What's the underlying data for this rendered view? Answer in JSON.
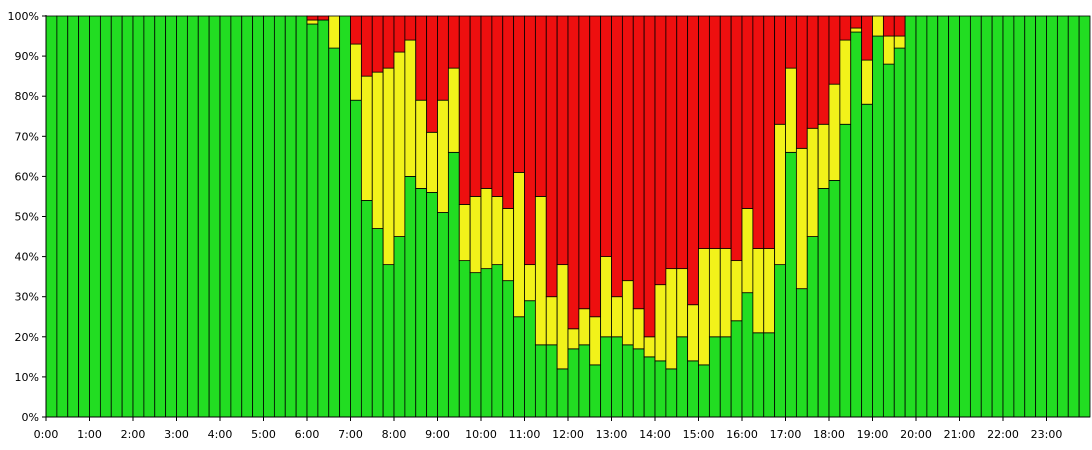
{
  "chart_data": {
    "type": "bar",
    "stacked": true,
    "title": "",
    "xlabel": "",
    "ylabel": "",
    "ylim": [
      0,
      100
    ],
    "grid": false,
    "legend": "none",
    "x_tick_labels": [
      "0:00",
      "1:00",
      "2:00",
      "3:00",
      "4:00",
      "5:00",
      "6:00",
      "7:00",
      "8:00",
      "9:00",
      "10:00",
      "11:00",
      "12:00",
      "13:00",
      "14:00",
      "15:00",
      "16:00",
      "17:00",
      "18:00",
      "19:00",
      "20:00",
      "21:00",
      "22:00",
      "23:00"
    ],
    "y_tick_labels": [
      "0%",
      "10%",
      "20%",
      "30%",
      "40%",
      "50%",
      "60%",
      "70%",
      "80%",
      "90%",
      "100%"
    ],
    "bars_per_hour": 4,
    "colors": {
      "green": "#22dd22",
      "yellow": "#f2f21a",
      "red": "#ee0f0f",
      "edge": "#000000"
    },
    "series": [
      {
        "color": "green",
        "values": [
          100,
          100,
          100,
          100,
          100,
          100,
          100,
          100,
          100,
          100,
          100,
          100,
          100,
          100,
          100,
          100,
          100,
          100,
          100,
          100,
          100,
          100,
          100,
          100,
          98,
          99,
          92,
          100,
          79,
          54,
          47,
          38,
          45,
          60,
          57,
          56,
          51,
          66,
          39,
          36,
          37,
          38,
          34,
          25,
          29,
          18,
          18,
          12,
          17,
          18,
          13,
          20,
          20,
          18,
          17,
          15,
          14,
          12,
          20,
          14,
          13,
          20,
          20,
          24,
          31,
          21,
          21,
          38,
          66,
          32,
          45,
          57,
          59,
          73,
          96,
          78,
          95,
          88,
          92,
          100,
          100,
          100,
          100,
          100,
          100,
          100,
          100,
          100,
          100,
          100,
          100,
          100,
          100,
          100,
          100,
          100
        ]
      },
      {
        "color": "yellow",
        "values": [
          0,
          0,
          0,
          0,
          0,
          0,
          0,
          0,
          0,
          0,
          0,
          0,
          0,
          0,
          0,
          0,
          0,
          0,
          0,
          0,
          0,
          0,
          0,
          0,
          1,
          0,
          8,
          0,
          14,
          31,
          39,
          49,
          46,
          34,
          22,
          15,
          28,
          21,
          14,
          19,
          20,
          17,
          18,
          36,
          9,
          37,
          12,
          26,
          5,
          9,
          12,
          20,
          10,
          16,
          10,
          5,
          19,
          25,
          17,
          14,
          29,
          22,
          22,
          15,
          21,
          21,
          21,
          35,
          21,
          35,
          27,
          16,
          24,
          21,
          1,
          11,
          5,
          7,
          3,
          0,
          0,
          0,
          0,
          0,
          0,
          0,
          0,
          0,
          0,
          0,
          0,
          0,
          0,
          0,
          0,
          0
        ]
      },
      {
        "color": "red",
        "values": [
          0,
          0,
          0,
          0,
          0,
          0,
          0,
          0,
          0,
          0,
          0,
          0,
          0,
          0,
          0,
          0,
          0,
          0,
          0,
          0,
          0,
          0,
          0,
          0,
          1,
          1,
          0,
          0,
          7,
          15,
          14,
          13,
          9,
          6,
          21,
          29,
          21,
          13,
          47,
          45,
          43,
          45,
          48,
          39,
          62,
          45,
          70,
          62,
          78,
          73,
          75,
          60,
          70,
          66,
          73,
          80,
          67,
          63,
          63,
          72,
          58,
          58,
          58,
          61,
          48,
          58,
          58,
          27,
          13,
          33,
          28,
          27,
          17,
          6,
          3,
          11,
          0,
          5,
          5,
          0,
          0,
          0,
          0,
          0,
          0,
          0,
          0,
          0,
          0,
          0,
          0,
          0,
          0,
          0,
          0,
          0
        ]
      }
    ]
  }
}
